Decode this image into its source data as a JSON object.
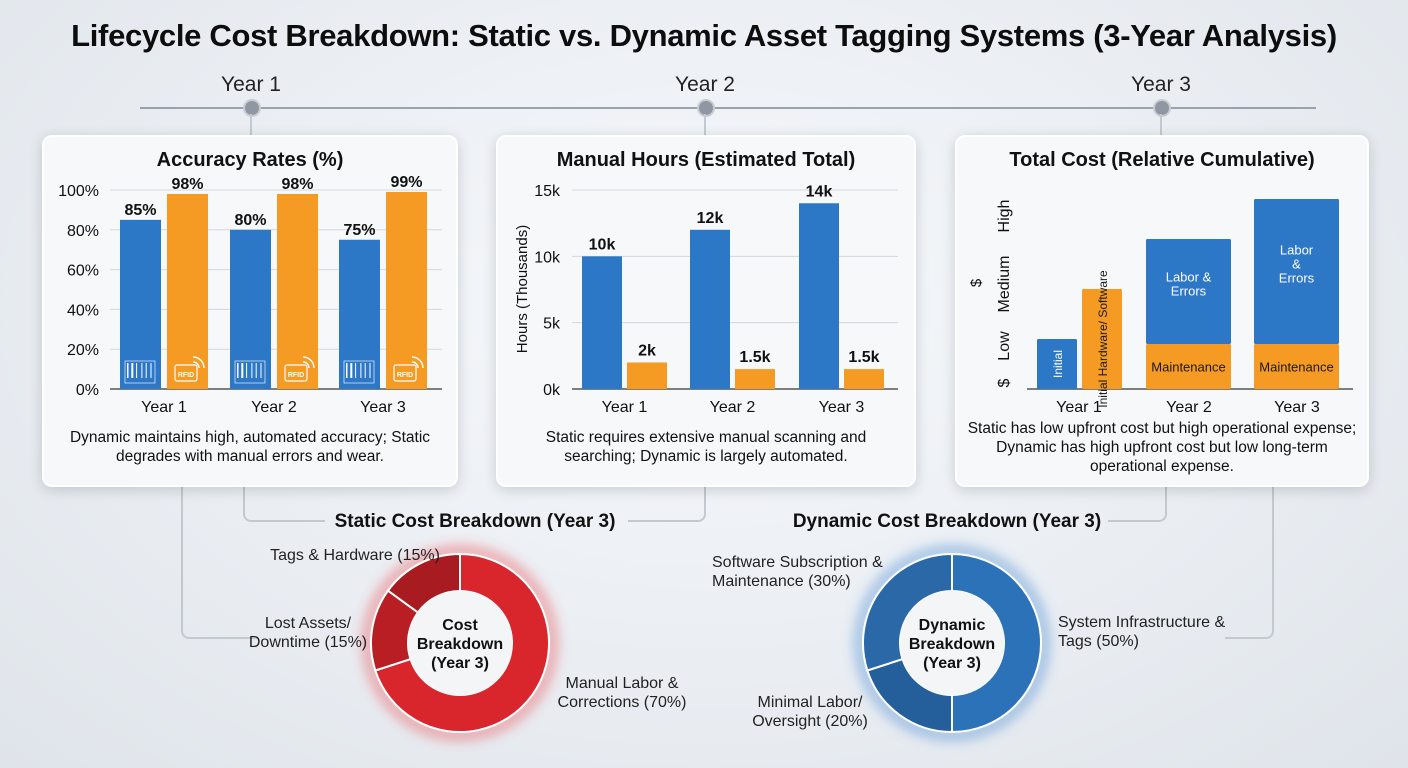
{
  "title": "Lifecycle Cost Breakdown: Static vs. Dynamic Asset Tagging Systems (3-Year Analysis)",
  "timeline": [
    "Year 1",
    "Year 2",
    "Year 3"
  ],
  "colors": {
    "static": "#2c77c6",
    "dynamic": "#f59a23",
    "static_donut": "#d8262c",
    "dynamic_donut": "#2c72b8"
  },
  "icons": [
    "barcode-icon",
    "rfid-icon"
  ],
  "chart_data": [
    {
      "type": "bar",
      "title": "Accuracy Rates (%)",
      "categories": [
        "Year 1",
        "Year 2",
        "Year 3"
      ],
      "series": [
        {
          "values": [
            85,
            80,
            75
          ]
        },
        {
          "values": [
            98,
            98,
            99
          ]
        }
      ],
      "data_labels": [
        [
          "85%",
          "80%",
          "75%"
        ],
        [
          "98%",
          "98%",
          "99%"
        ]
      ],
      "bar_icon_text": "RFID",
      "yticks": [
        "0%",
        "20%",
        "40%",
        "60%",
        "80%",
        "100%"
      ],
      "ylim": [
        0,
        100
      ],
      "caption": "Dynamic maintains high, automated accuracy; Static degrades with manual errors and wear."
    },
    {
      "type": "bar",
      "title": "Manual Hours (Estimated Total)",
      "categories": [
        "Year 1",
        "Year 2",
        "Year 3"
      ],
      "series": [
        {
          "values": [
            10,
            12,
            14
          ]
        },
        {
          "values": [
            2,
            1.5,
            1.5
          ]
        }
      ],
      "data_labels": [
        [
          "10k",
          "12k",
          "14k"
        ],
        [
          "2k",
          "1.5k",
          "1.5k"
        ]
      ],
      "ylabel": "Hours (Thousands)",
      "yticks": [
        "0k",
        "5k",
        "10k",
        "15k"
      ],
      "ylim": [
        0,
        15
      ],
      "caption": "Static requires extensive manual scanning and searching; Dynamic is largely automated."
    },
    {
      "type": "bar",
      "title": "Total Cost (Relative Cumulative)",
      "categories": [
        "Year 1",
        "Year 2",
        "Year 3"
      ],
      "ylabel": "$",
      "yticks": [
        "$",
        "Low",
        "Medium",
        "High"
      ],
      "ylim": [
        0,
        4
      ],
      "bars": [
        {
          "category": "Year 1",
          "segments": [
            {
              "label": "Initial",
              "value": 1.0,
              "color": "#2c77c6"
            }
          ]
        },
        {
          "category": "Year 1",
          "segments": [
            {
              "label": "Initial Hardware/ Software",
              "value": 2.0,
              "color": "#f59a23"
            }
          ]
        },
        {
          "category": "Year 2",
          "segments": [
            {
              "label": "Maintenance",
              "value": 0.9,
              "color": "#f59a23"
            },
            {
              "label": "Labor & Errors",
              "value": 2.1,
              "color": "#2c77c6"
            }
          ]
        },
        {
          "category": "Year 3",
          "segments": [
            {
              "label": "Maintenance",
              "value": 0.9,
              "color": "#f59a23"
            },
            {
              "label": "Labor & Errors",
              "value": 2.9,
              "color": "#2c77c6"
            }
          ]
        }
      ],
      "caption": "Static has low upfront cost but high operational expense; Dynamic has high upfront cost but low long-term operational expense."
    },
    {
      "type": "pie",
      "title": "Static Cost Breakdown (Year 3)",
      "center_label": "Cost Breakdown (Year 3)",
      "slices": [
        {
          "label": "Manual Labor & Corrections (70%)",
          "value": 70,
          "color": "#d8262c"
        },
        {
          "label": "Lost Assets/ Downtime (15%)",
          "value": 15,
          "color": "#b81e24"
        },
        {
          "label": "Tags & Hardware (15%)",
          "value": 15,
          "color": "#a81b20"
        }
      ]
    },
    {
      "type": "pie",
      "title": "Dynamic Cost Breakdown (Year 3)",
      "center_label": "Dynamic Breakdown (Year 3)",
      "slices": [
        {
          "label": "System Infrastructure & Tags (50%)",
          "value": 50,
          "color": "#2c72b8"
        },
        {
          "label": "Minimal Labor/ Oversight (20%)",
          "value": 20,
          "color": "#245f9c"
        },
        {
          "label": "Software Subscription & Maintenance (30%)",
          "value": 30,
          "color": "#2a68a8"
        }
      ]
    }
  ]
}
